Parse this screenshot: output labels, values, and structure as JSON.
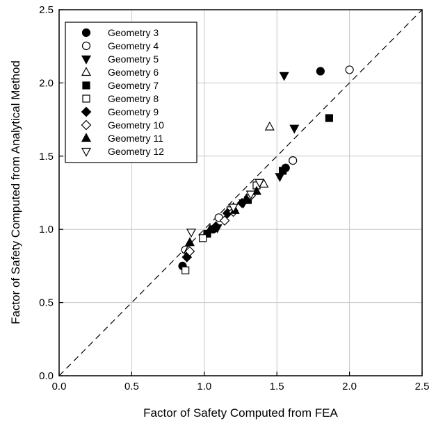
{
  "chart_data": {
    "type": "scatter",
    "title": "",
    "xlabel": "Factor of Safety Computed from FEA",
    "ylabel": "Factor of Safety Computed from Analytical Method",
    "xlim": [
      0.0,
      2.5
    ],
    "ylim": [
      0.0,
      2.5
    ],
    "xticks": [
      "0.0",
      "0.5",
      "1.0",
      "1.5",
      "2.0",
      "2.5"
    ],
    "yticks": [
      "0.0",
      "0.5",
      "1.0",
      "1.5",
      "2.0",
      "2.5"
    ],
    "grid": true,
    "legend_position": "top-left",
    "reference_line": {
      "style": "dashed",
      "from": [
        0,
        0
      ],
      "to": [
        2.5,
        2.5
      ]
    },
    "series": [
      {
        "name": "Geometry 3",
        "marker": "circle",
        "filled": true,
        "x": [
          0.85,
          1.06,
          1.56,
          1.8
        ],
        "y": [
          0.75,
          1.0,
          1.42,
          2.08
        ]
      },
      {
        "name": "Geometry 4",
        "marker": "circle",
        "filled": false,
        "x": [
          0.87,
          1.1,
          1.61,
          2.0
        ],
        "y": [
          0.86,
          1.08,
          1.47,
          2.09
        ]
      },
      {
        "name": "Geometry 5",
        "marker": "triangle-down",
        "filled": true,
        "x": [
          1.09,
          1.27,
          1.52,
          1.55,
          1.62
        ],
        "y": [
          1.01,
          1.18,
          1.36,
          2.05,
          1.69
        ]
      },
      {
        "name": "Geometry 6",
        "marker": "triangle-up",
        "filled": false,
        "x": [
          0.89,
          1.2,
          1.41,
          1.45
        ],
        "y": [
          0.86,
          1.15,
          1.31,
          1.7
        ]
      },
      {
        "name": "Geometry 7",
        "marker": "square",
        "filled": true,
        "x": [
          1.02,
          1.3,
          1.54,
          1.86
        ],
        "y": [
          0.97,
          1.2,
          1.4,
          1.76
        ]
      },
      {
        "name": "Geometry 8",
        "marker": "square",
        "filled": false,
        "x": [
          0.87,
          0.99,
          1.18,
          1.36
        ],
        "y": [
          0.72,
          0.94,
          1.13,
          1.3
        ]
      },
      {
        "name": "Geometry 9",
        "marker": "diamond",
        "filled": true,
        "x": [
          0.88,
          1.08,
          1.16,
          1.26
        ],
        "y": [
          0.81,
          1.02,
          1.11,
          1.18
        ]
      },
      {
        "name": "Geometry 10",
        "marker": "diamond",
        "filled": false,
        "x": [
          0.9,
          1.14,
          1.2,
          1.32
        ],
        "y": [
          0.85,
          1.06,
          1.12,
          1.23
        ]
      },
      {
        "name": "Geometry 11",
        "marker": "triangle-up",
        "filled": true,
        "x": [
          0.9,
          1.04,
          1.21,
          1.29,
          1.36
        ],
        "y": [
          0.91,
          1.0,
          1.13,
          1.21,
          1.26
        ]
      },
      {
        "name": "Geometry 12",
        "marker": "triangle-down",
        "filled": false,
        "x": [
          0.91,
          1.2,
          1.32,
          1.38
        ],
        "y": [
          0.98,
          1.15,
          1.24,
          1.32
        ]
      }
    ]
  }
}
